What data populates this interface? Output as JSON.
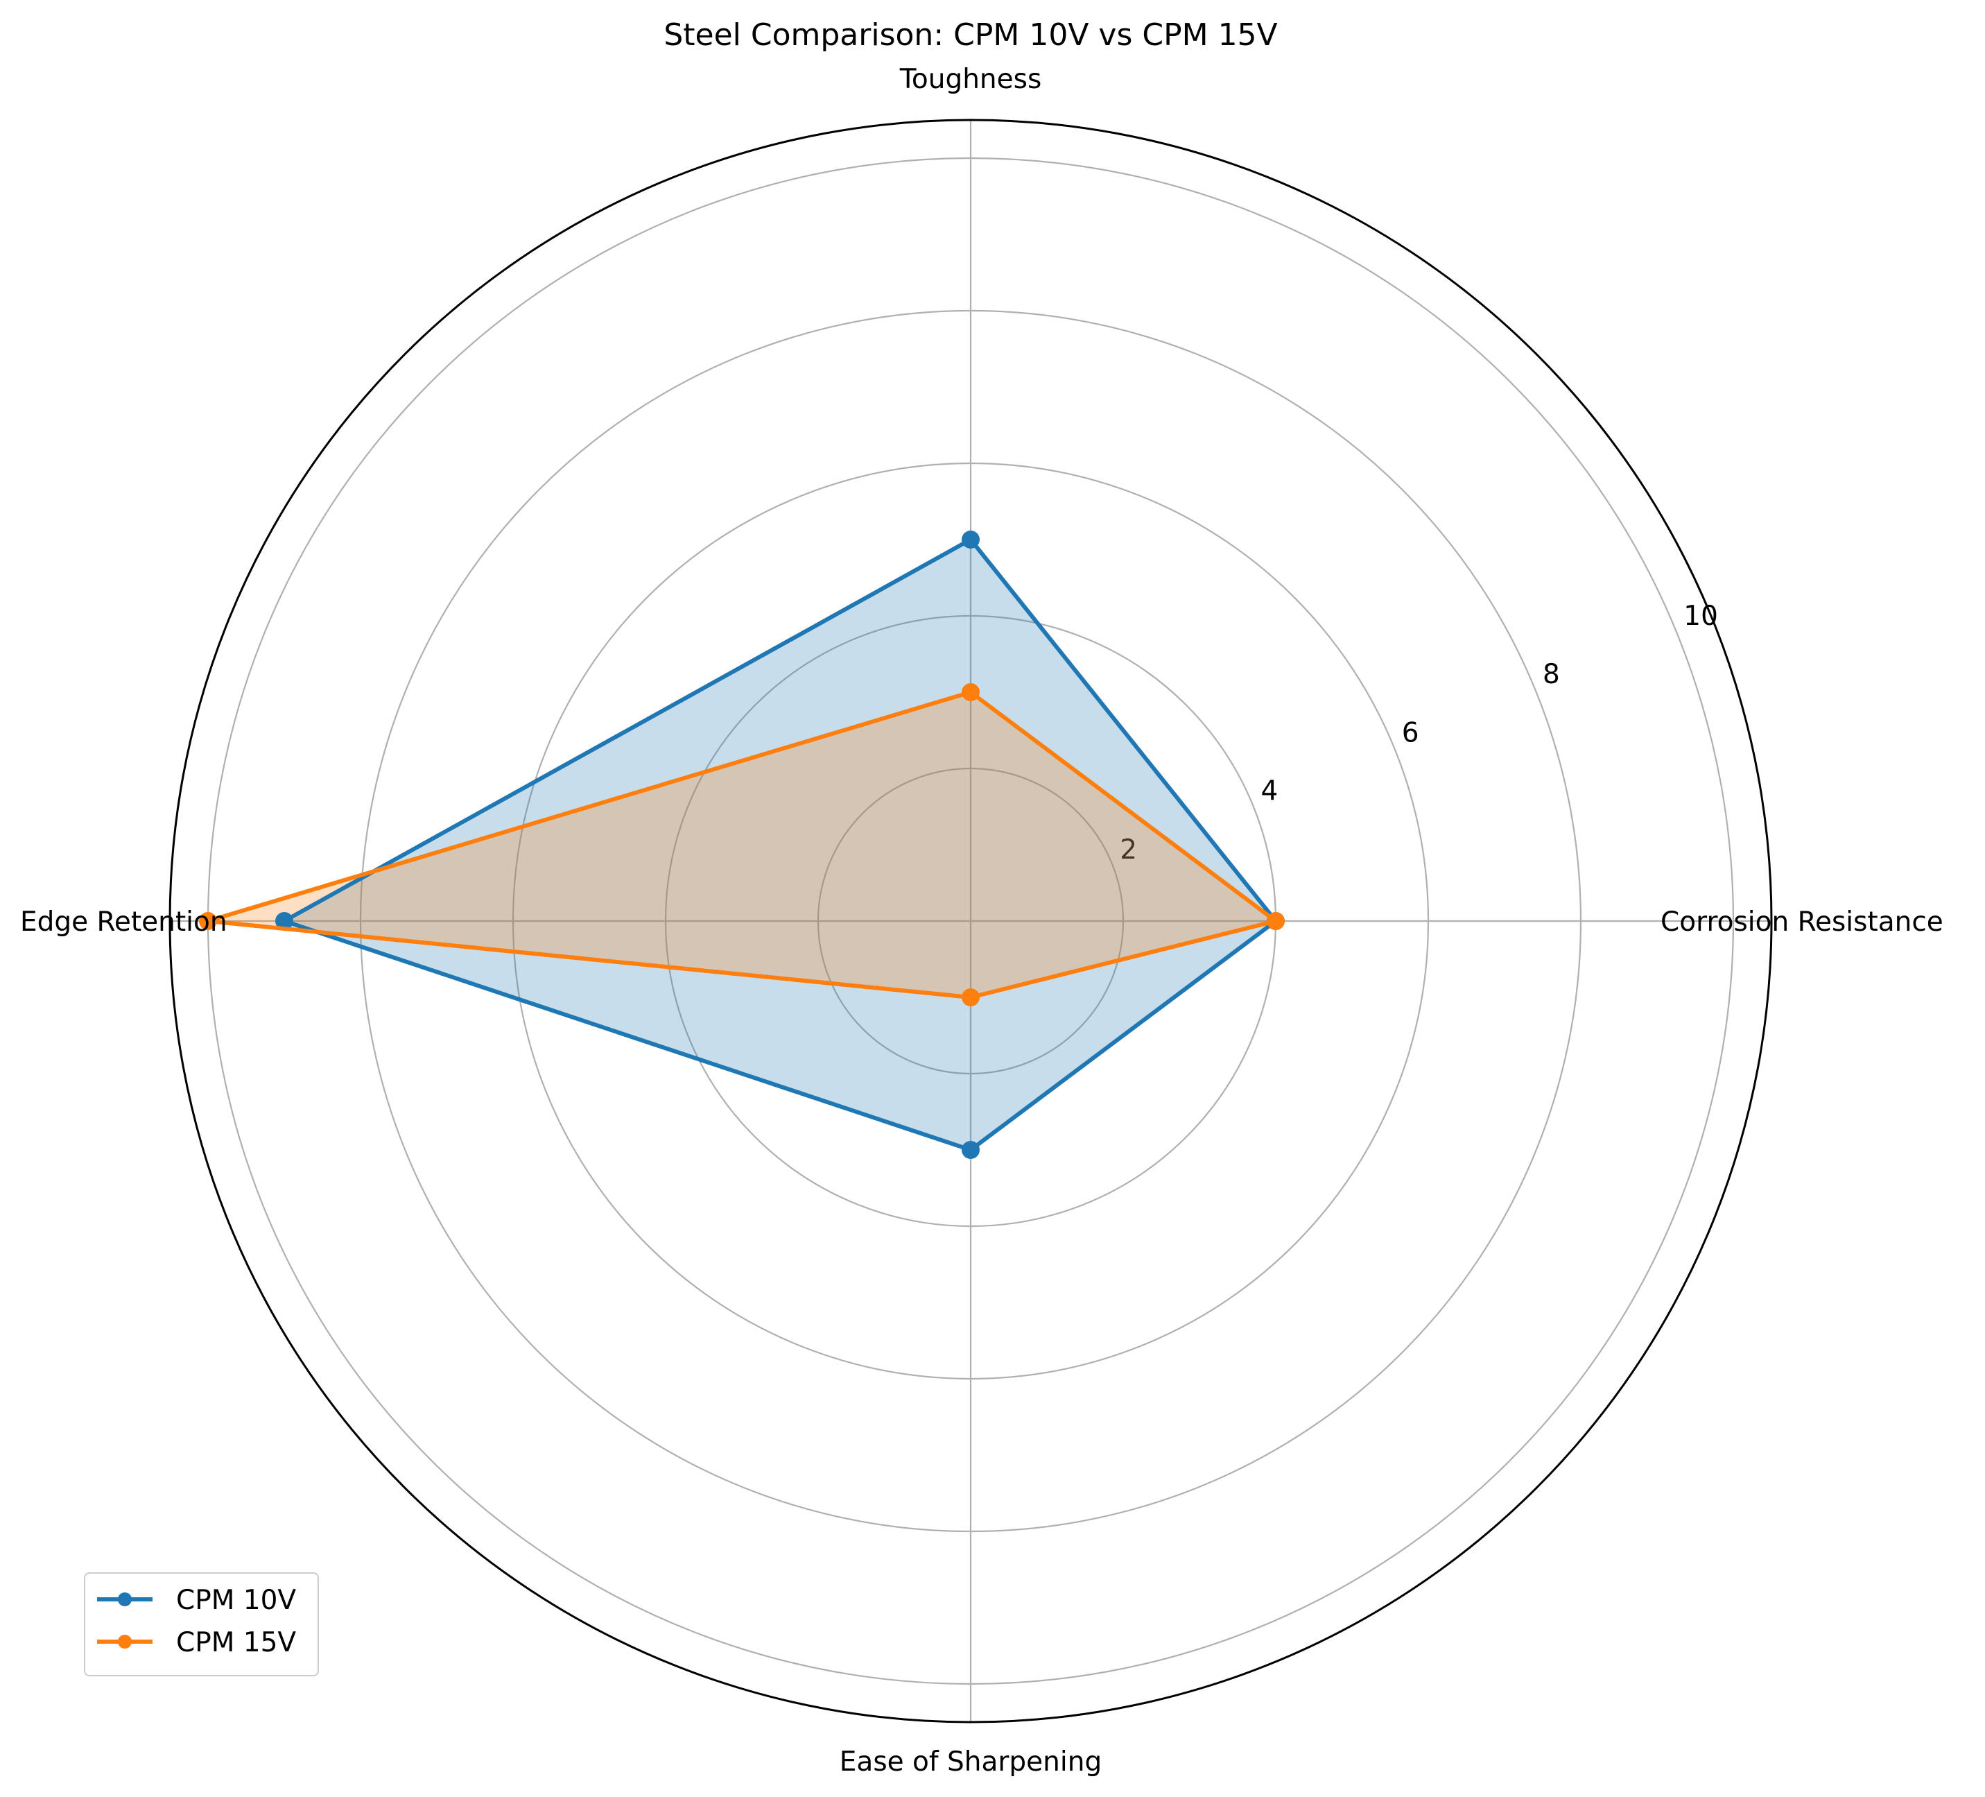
{
  "chart_data": {
    "type": "radar",
    "title": "Steel Comparison: CPM 10V vs CPM 15V",
    "categories": [
      "Corrosion Resistance",
      "Toughness",
      "Edge Retention",
      "Ease of Sharpening"
    ],
    "series": [
      {
        "name": "CPM 10V",
        "values": [
          4,
          5,
          9,
          3
        ],
        "color": "#1f77b4"
      },
      {
        "name": "CPM 15V",
        "values": [
          4,
          3,
          10,
          1
        ],
        "color": "#ff7f0e"
      }
    ],
    "rlim": [
      0,
      10.5
    ],
    "rticks": [
      2,
      4,
      6,
      8,
      10
    ],
    "rtick_labels": [
      "2",
      "4",
      "6",
      "8",
      "10"
    ],
    "grid": true,
    "legend": "lower-left"
  }
}
